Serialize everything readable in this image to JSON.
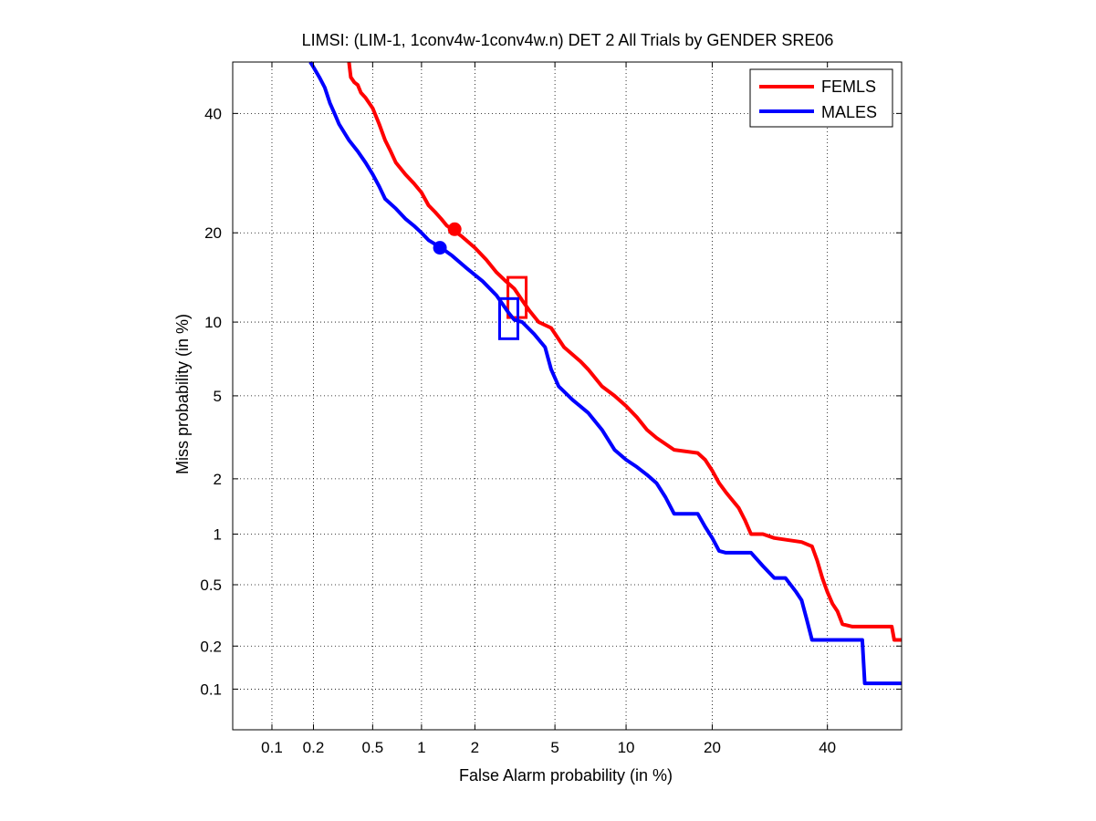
{
  "chart_data": {
    "type": "line",
    "title": "LIMSI: (LIM-1, 1conv4w-1conv4w.n) DET 2 All Trials by GENDER SRE06",
    "xlabel": "False Alarm probability (in %)",
    "ylabel": "Miss probability (in %)",
    "scale": "normal-deviate (probit) on both axes",
    "grid": true,
    "legend_position": "top-right",
    "xlim": [
      0.05,
      55
    ],
    "ylim": [
      0.05,
      50
    ],
    "x_ticks": [
      0.1,
      0.2,
      0.5,
      1,
      2,
      5,
      10,
      20,
      40
    ],
    "x_tick_labels": [
      "0.1",
      "0.2",
      "0.5",
      "1",
      "2",
      "5",
      "10",
      "20",
      "40"
    ],
    "y_ticks": [
      0.1,
      0.2,
      0.5,
      1,
      2,
      5,
      10,
      20,
      40
    ],
    "y_tick_labels": [
      "0.1",
      "0.2",
      "0.5",
      "1",
      "2",
      "5",
      "10",
      "20",
      "40"
    ],
    "series": [
      {
        "name": "FEMLS",
        "color": "#ff0000",
        "points": [
          [
            0.35,
            50
          ],
          [
            0.36,
            47
          ],
          [
            0.38,
            46
          ],
          [
            0.4,
            45.5
          ],
          [
            0.42,
            44
          ],
          [
            0.45,
            43
          ],
          [
            0.5,
            41
          ],
          [
            0.55,
            38
          ],
          [
            0.6,
            35
          ],
          [
            0.65,
            33
          ],
          [
            0.7,
            31
          ],
          [
            0.8,
            29
          ],
          [
            0.9,
            27.5
          ],
          [
            1.0,
            26
          ],
          [
            1.1,
            24
          ],
          [
            1.2,
            23
          ],
          [
            1.3,
            22
          ],
          [
            1.4,
            21
          ],
          [
            1.5,
            20.5
          ],
          [
            1.7,
            19.5
          ],
          [
            2.0,
            18
          ],
          [
            2.3,
            16.5
          ],
          [
            2.6,
            15
          ],
          [
            2.9,
            14
          ],
          [
            3.2,
            13.2
          ],
          [
            3.5,
            12
          ],
          [
            3.8,
            11
          ],
          [
            4.2,
            10
          ],
          [
            4.8,
            9.5
          ],
          [
            5.5,
            8
          ],
          [
            6.5,
            7
          ],
          [
            7,
            6.5
          ],
          [
            8,
            5.5
          ],
          [
            9,
            5
          ],
          [
            10,
            4.5
          ],
          [
            11,
            4
          ],
          [
            12,
            3.5
          ],
          [
            13,
            3.2
          ],
          [
            15,
            2.8
          ],
          [
            18,
            2.7
          ],
          [
            19,
            2.5
          ],
          [
            20,
            2.2
          ],
          [
            21,
            1.9
          ],
          [
            22,
            1.7
          ],
          [
            24,
            1.4
          ],
          [
            25,
            1.2
          ],
          [
            26,
            1.0
          ],
          [
            28,
            1.0
          ],
          [
            30,
            0.95
          ],
          [
            35,
            0.9
          ],
          [
            37,
            0.85
          ],
          [
            38,
            0.7
          ],
          [
            39,
            0.55
          ],
          [
            40,
            0.45
          ],
          [
            41,
            0.38
          ],
          [
            42,
            0.34
          ],
          [
            43,
            0.28
          ],
          [
            45,
            0.27
          ],
          [
            48,
            0.27
          ],
          [
            53,
            0.27
          ],
          [
            53.5,
            0.22
          ],
          [
            55,
            0.22
          ]
        ],
        "marker_circle": [
          1.55,
          20.5
        ],
        "marker_square": [
          3.3,
          12.3
        ]
      },
      {
        "name": "MALES",
        "color": "#0000ff",
        "points": [
          [
            0.19,
            50
          ],
          [
            0.2,
            49
          ],
          [
            0.22,
            47
          ],
          [
            0.24,
            45
          ],
          [
            0.26,
            42
          ],
          [
            0.28,
            40
          ],
          [
            0.3,
            38
          ],
          [
            0.35,
            35
          ],
          [
            0.4,
            33
          ],
          [
            0.45,
            31
          ],
          [
            0.5,
            29
          ],
          [
            0.55,
            27
          ],
          [
            0.6,
            25
          ],
          [
            0.7,
            23.5
          ],
          [
            0.8,
            22
          ],
          [
            0.9,
            21
          ],
          [
            1.0,
            20
          ],
          [
            1.1,
            19
          ],
          [
            1.3,
            18
          ],
          [
            1.5,
            17
          ],
          [
            1.8,
            15.5
          ],
          [
            2.2,
            14
          ],
          [
            2.6,
            12.5
          ],
          [
            3.0,
            10.8
          ],
          [
            3.2,
            10.2
          ],
          [
            3.5,
            10
          ],
          [
            4,
            9
          ],
          [
            4.5,
            8
          ],
          [
            4.8,
            6.5
          ],
          [
            5.2,
            5.5
          ],
          [
            6,
            4.8
          ],
          [
            7,
            4.2
          ],
          [
            8,
            3.5
          ],
          [
            9,
            2.8
          ],
          [
            10,
            2.5
          ],
          [
            11,
            2.3
          ],
          [
            12,
            2.1
          ],
          [
            13,
            1.9
          ],
          [
            14,
            1.6
          ],
          [
            15,
            1.3
          ],
          [
            16,
            1.3
          ],
          [
            18,
            1.3
          ],
          [
            19,
            1.1
          ],
          [
            20,
            0.95
          ],
          [
            21,
            0.8
          ],
          [
            22,
            0.78
          ],
          [
            24,
            0.78
          ],
          [
            26,
            0.78
          ],
          [
            28,
            0.65
          ],
          [
            30,
            0.55
          ],
          [
            32,
            0.55
          ],
          [
            34,
            0.45
          ],
          [
            35,
            0.4
          ],
          [
            36,
            0.3
          ],
          [
            37,
            0.22
          ],
          [
            40,
            0.22
          ],
          [
            45,
            0.22
          ],
          [
            47,
            0.22
          ],
          [
            47.5,
            0.11
          ],
          [
            50,
            0.11
          ],
          [
            55,
            0.11
          ]
        ],
        "marker_circle": [
          1.28,
          18
        ],
        "marker_square": [
          3.0,
          10.3
        ]
      }
    ]
  }
}
